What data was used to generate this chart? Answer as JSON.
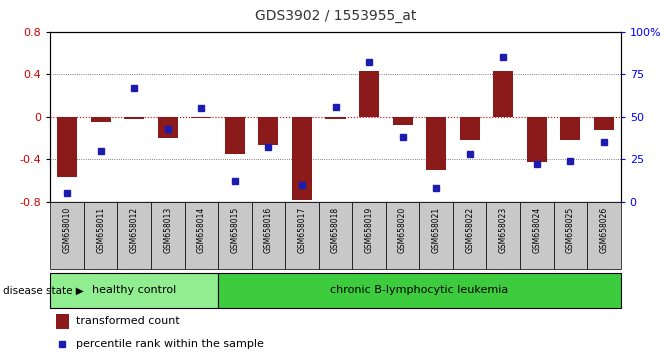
{
  "title": "GDS3902 / 1553955_at",
  "samples": [
    "GSM658010",
    "GSM658011",
    "GSM658012",
    "GSM658013",
    "GSM658014",
    "GSM658015",
    "GSM658016",
    "GSM658017",
    "GSM658018",
    "GSM658019",
    "GSM658020",
    "GSM658021",
    "GSM658022",
    "GSM658023",
    "GSM658024",
    "GSM658025",
    "GSM658026"
  ],
  "transformed_count": [
    -0.57,
    -0.05,
    -0.02,
    -0.2,
    -0.01,
    -0.35,
    -0.27,
    -0.78,
    -0.02,
    0.43,
    -0.08,
    -0.5,
    -0.22,
    0.43,
    -0.43,
    -0.22,
    -0.12
  ],
  "percentile_rank": [
    5,
    30,
    67,
    43,
    55,
    12,
    32,
    10,
    56,
    82,
    38,
    8,
    28,
    85,
    22,
    24,
    35
  ],
  "healthy_count": 5,
  "ylim_left": [
    -0.8,
    0.8
  ],
  "ylim_right": [
    0,
    100
  ],
  "yticks_left": [
    -0.8,
    -0.4,
    0.0,
    0.4,
    0.8
  ],
  "ytick_labels_left": [
    "-0.8",
    "-0.4",
    "0",
    "0.4",
    "0.8"
  ],
  "yticks_right": [
    0,
    25,
    50,
    75,
    100
  ],
  "ytick_labels_right": [
    "0",
    "25",
    "50",
    "75",
    "100%"
  ],
  "bar_color": "#8B1A1A",
  "dot_color": "#1C1CB0",
  "healthy_bg": "#90EE90",
  "leukemia_bg": "#3DCC3D",
  "label_bg": "#C8C8C8",
  "zero_line_color": "#CC0000",
  "grid_color": "#555555",
  "title_color": "#333333",
  "legend_bar_label": "transformed count",
  "legend_dot_label": "percentile rank within the sample",
  "disease_state_label": "disease state",
  "healthy_label": "healthy control",
  "leukemia_label": "chronic B-lymphocytic leukemia"
}
